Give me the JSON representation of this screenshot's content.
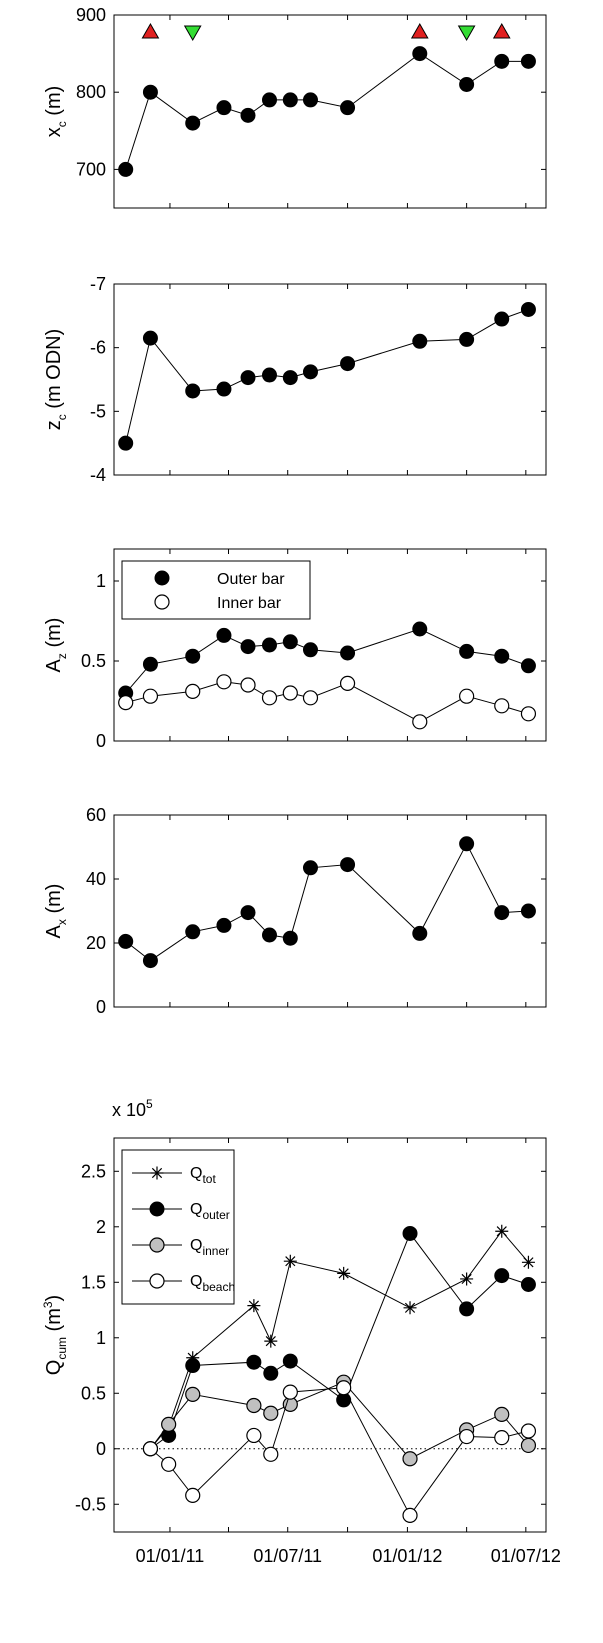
{
  "chart_data": [
    {
      "type": "line",
      "ylabel": "x",
      "ylabel_sub": "c",
      "ylabel_unit": " (m)",
      "ylim": [
        650,
        900
      ],
      "yticks": [
        700,
        800,
        900
      ],
      "x": [
        "2010-10-25",
        "2010-12-02",
        "2011-02-05",
        "2011-03-25",
        "2011-05-01",
        "2011-06-03",
        "2011-07-05",
        "2011-08-05",
        "2011-10-01",
        "2012-01-20",
        "2012-04-01",
        "2012-05-25",
        "2012-07-05"
      ],
      "series": [
        {
          "values": [
            700,
            800,
            760,
            780,
            770,
            790,
            790,
            790,
            780,
            850,
            810,
            840,
            840
          ]
        }
      ],
      "markers": [
        {
          "x": "2010-12-02",
          "shape": "triangle-up",
          "color": "#e02020"
        },
        {
          "x": "2011-02-05",
          "shape": "triangle-down",
          "color": "#33dd33"
        },
        {
          "x": "2012-01-20",
          "shape": "triangle-up",
          "color": "#e02020"
        },
        {
          "x": "2012-04-01",
          "shape": "triangle-down",
          "color": "#33dd33"
        },
        {
          "x": "2012-05-25",
          "shape": "triangle-up",
          "color": "#e02020"
        }
      ]
    },
    {
      "type": "line",
      "ylabel": "z",
      "ylabel_sub": "c",
      "ylabel_unit": " (m ODN)",
      "ylim": [
        -4,
        -7
      ],
      "yticks": [
        -4,
        -5,
        -6,
        -7
      ],
      "x": [
        "2010-10-25",
        "2010-12-02",
        "2011-02-05",
        "2011-03-25",
        "2011-05-01",
        "2011-06-03",
        "2011-07-05",
        "2011-08-05",
        "2011-10-01",
        "2012-01-20",
        "2012-04-01",
        "2012-05-25",
        "2012-07-05"
      ],
      "series": [
        {
          "values": [
            -4.5,
            -6.15,
            -5.32,
            -5.35,
            -5.53,
            -5.57,
            -5.53,
            -5.62,
            -5.75,
            -6.1,
            -6.13,
            -6.45,
            -6.6
          ]
        }
      ]
    },
    {
      "type": "line",
      "ylabel": "A",
      "ylabel_sub": "z",
      "ylabel_unit": " (m)",
      "ylim": [
        0,
        1.2
      ],
      "yticks": [
        0,
        0.5,
        1
      ],
      "legend": "top-left",
      "x": [
        "2010-10-25",
        "2010-12-02",
        "2011-02-05",
        "2011-03-25",
        "2011-05-01",
        "2011-06-03",
        "2011-07-05",
        "2011-08-05",
        "2011-10-01",
        "2012-01-20",
        "2012-04-01",
        "2012-05-25",
        "2012-07-05"
      ],
      "series": [
        {
          "name": "Outer bar",
          "marker": "filled-black",
          "values": [
            0.3,
            0.48,
            0.53,
            0.66,
            0.59,
            0.6,
            0.62,
            0.57,
            0.55,
            0.7,
            0.56,
            0.53,
            0.47
          ]
        },
        {
          "name": "Inner bar",
          "marker": "open",
          "values": [
            0.24,
            0.28,
            0.31,
            0.37,
            0.35,
            0.27,
            0.3,
            0.27,
            0.36,
            0.12,
            0.28,
            0.22,
            0.17
          ]
        }
      ]
    },
    {
      "type": "line",
      "ylabel": "A",
      "ylabel_sub": "x",
      "ylabel_unit": " (m)",
      "ylim": [
        0,
        60
      ],
      "yticks": [
        0,
        20,
        40,
        60
      ],
      "x": [
        "2010-10-25",
        "2010-12-02",
        "2011-02-05",
        "2011-03-25",
        "2011-05-01",
        "2011-06-03",
        "2011-07-05",
        "2011-08-05",
        "2011-10-01",
        "2012-01-20",
        "2012-04-01",
        "2012-05-25",
        "2012-07-05"
      ],
      "series": [
        {
          "values": [
            20.5,
            14.5,
            23.5,
            25.5,
            29.5,
            22.5,
            21.5,
            43.5,
            44.5,
            23,
            51,
            29.5,
            30
          ]
        }
      ]
    },
    {
      "type": "line",
      "ylabel": "Q",
      "ylabel_sub": "cum",
      "ylabel_unit": " (m",
      "ylabel_sup": "3",
      "ylabel_close": ")",
      "exponent_base": "x 10",
      "exponent_power": "5",
      "ylim": [
        -0.75,
        2.8
      ],
      "yticks": [
        -0.5,
        0,
        0.5,
        1,
        1.5,
        2,
        2.5
      ],
      "ytick_labels": [
        "-0.5",
        "0",
        "0.5",
        "1",
        "1.5",
        "2",
        "2.5"
      ],
      "xtick_dates": [
        "2011-01-01",
        "2011-04-01",
        "2011-07-01",
        "2011-10-01",
        "2012-01-01",
        "2012-04-01",
        "2012-07-01"
      ],
      "xtick_labels": [
        "01/01/11",
        "",
        "01/07/11",
        "",
        "01/01/12",
        "",
        "01/07/12"
      ],
      "legend": "top-left",
      "x": [
        "2010-12-02",
        "2010-12-30",
        "2011-02-05",
        "2011-05-10",
        "2011-06-05",
        "2011-07-05",
        "2011-09-25",
        "2012-01-05",
        "2012-04-01",
        "2012-05-25",
        "2012-07-05"
      ],
      "series": [
        {
          "name": "Q",
          "name_sub": "tot",
          "marker": "star",
          "values": [
            0,
            0.2,
            0.82,
            1.29,
            0.97,
            1.69,
            1.58,
            1.27,
            1.53,
            1.96,
            1.68
          ]
        },
        {
          "name": "Q",
          "name_sub": "outer",
          "marker": "filled-black",
          "values": [
            0,
            0.12,
            0.75,
            0.78,
            0.68,
            0.79,
            0.44,
            1.94,
            1.26,
            1.56,
            1.48
          ]
        },
        {
          "name": "Q",
          "name_sub": "inner",
          "marker": "filled-gray",
          "values": [
            0,
            0.22,
            0.49,
            0.39,
            0.32,
            0.4,
            0.6,
            -0.09,
            0.17,
            0.31,
            0.03
          ]
        },
        {
          "name": "Q",
          "name_sub": "beach",
          "marker": "open",
          "values": [
            0,
            -0.14,
            -0.42,
            0.12,
            -0.05,
            0.51,
            0.55,
            -0.6,
            0.11,
            0.1,
            0.16
          ]
        }
      ]
    }
  ]
}
